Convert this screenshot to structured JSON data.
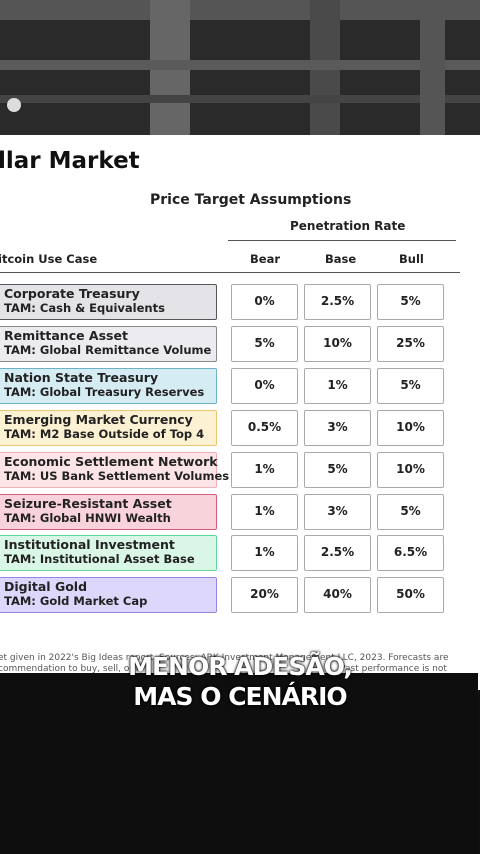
{
  "slide": {
    "title": "llar Market",
    "subtitle": "Price Target Assumptions",
    "group_header": "Penetration Rate",
    "columns": [
      "itcoin Use Case",
      "Bear",
      "Base",
      "Bull"
    ],
    "rows": [
      {
        "use_case": "Corporate Treasury",
        "tam": "TAM: Cash & Equivalents",
        "values": [
          "0%",
          "2.5%",
          "5%"
        ]
      },
      {
        "use_case": "Remittance Asset",
        "tam": "TAM: Global Remittance Volume",
        "values": [
          "5%",
          "10%",
          "25%"
        ]
      },
      {
        "use_case": "Nation State Treasury",
        "tam": "TAM: Global Treasury Reserves",
        "values": [
          "0%",
          "1%",
          "5%"
        ]
      },
      {
        "use_case": "Emerging Market Currency",
        "tam": "TAM: M2 Base Outside of Top 4",
        "values": [
          "0.5%",
          "3%",
          "10%"
        ]
      },
      {
        "use_case": "Economic Settlement Network",
        "tam": "TAM: US Bank Settlement Volumes",
        "values": [
          "1%",
          "5%",
          "10%"
        ]
      },
      {
        "use_case": "Seizure-Resistant Asset",
        "tam": "TAM: Global HNWI Wealth",
        "values": [
          "1%",
          "3%",
          "5%"
        ]
      },
      {
        "use_case": "Institutional Investment",
        "tam": "TAM: Institutional Asset Base",
        "values": [
          "1%",
          "2.5%",
          "6.5%"
        ]
      },
      {
        "use_case": "Digital Gold",
        "tam": "TAM: Gold Market Cap",
        "values": [
          "20%",
          "40%",
          "50%"
        ]
      }
    ],
    "footnote": [
      "et given in 2022's Big Ideas report. Sources: ARK Investment Management LLC, 2023. Forecasts are",
      "commendation to buy, sell, or h",
      "Past performance is not"
    ]
  },
  "caption": [
    "MENOR ADESÃO,",
    "MAS O CENÁRIO"
  ]
}
